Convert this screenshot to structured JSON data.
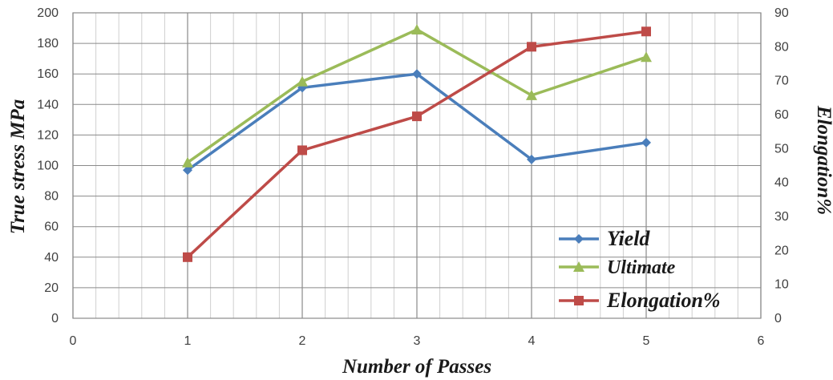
{
  "chart_data": {
    "type": "line",
    "xlabel": "Number of Passes",
    "ylabel_left": "True stress MPa",
    "ylabel_right": "Elongation%",
    "xlim": [
      0,
      6
    ],
    "x_ticks": [
      0,
      1,
      2,
      3,
      4,
      5,
      6
    ],
    "ylim_left": [
      0,
      200
    ],
    "y_ticks_left": [
      0,
      20,
      40,
      60,
      80,
      100,
      120,
      140,
      160,
      180,
      200
    ],
    "ylim_right": [
      0,
      90
    ],
    "y_ticks_right": [
      0,
      10,
      20,
      30,
      40,
      50,
      60,
      70,
      80,
      90
    ],
    "grid": true,
    "legend_position": "bottom-right",
    "series": [
      {
        "name": "Yield",
        "axis": "left",
        "color": "#4a7ebb",
        "marker": "diamond",
        "x": [
          1,
          2,
          3,
          4,
          5
        ],
        "values": [
          97,
          151,
          160,
          104,
          115
        ]
      },
      {
        "name": "Ultimate",
        "axis": "left",
        "color": "#9bbb59",
        "marker": "triangle",
        "x": [
          1,
          2,
          3,
          4,
          5
        ],
        "values": [
          102,
          155,
          189,
          146,
          171
        ]
      },
      {
        "name": "Elongation%",
        "axis": "right",
        "color": "#be4b48",
        "marker": "square",
        "x": [
          1,
          2,
          3,
          4,
          5
        ],
        "values": [
          18,
          49.5,
          59.5,
          80,
          84.5
        ]
      }
    ]
  }
}
